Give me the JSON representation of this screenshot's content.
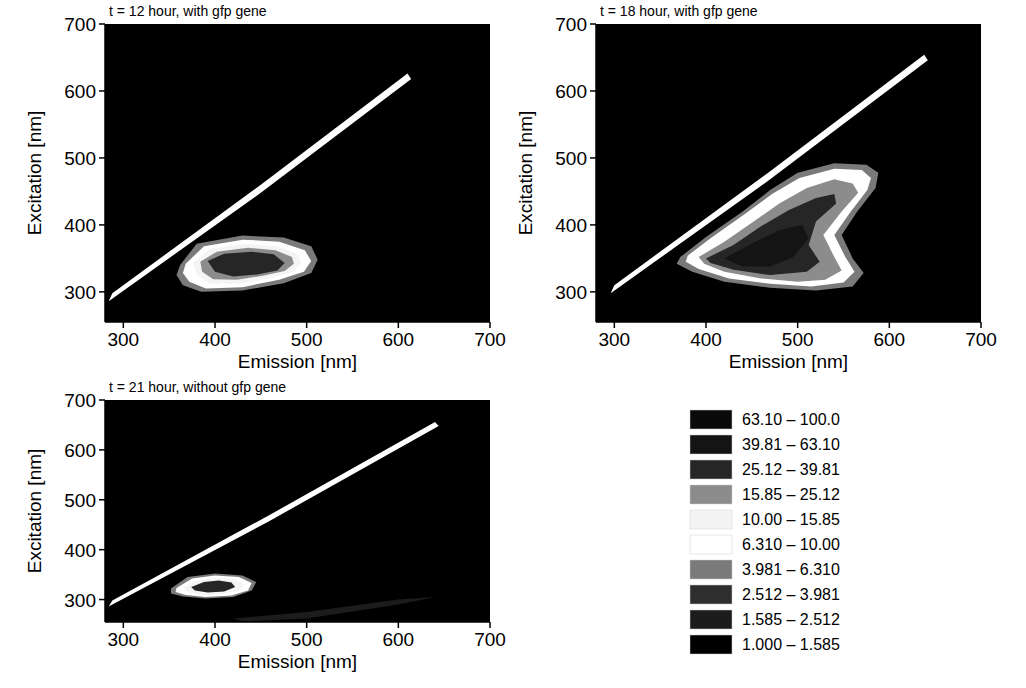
{
  "chart_data": [
    {
      "type": "contour",
      "title": "t = 12 hour, with gfp gene",
      "x_label": "Emission [nm]",
      "y_label": "Excitation [nm]",
      "xlim": [
        280,
        700
      ],
      "ylim": [
        255,
        700
      ],
      "xticks": [
        300,
        400,
        500,
        600,
        700
      ],
      "yticks": [
        300,
        400,
        500,
        600,
        700
      ],
      "background_level": 1,
      "contours": [
        {
          "level": 3.981,
          "x": [
            362,
            380,
            430,
            475,
            505,
            512,
            505,
            475,
            430,
            385,
            365,
            358
          ],
          "y": [
            340,
            372,
            384,
            381,
            368,
            348,
            328,
            313,
            302,
            300,
            310,
            325
          ]
        },
        {
          "level": 6.31,
          "x": [
            284,
            450,
            614,
            610,
            450,
            288
          ],
          "y": [
            286,
            448,
            618,
            626,
            460,
            298
          ]
        },
        {
          "level": 6.31,
          "x": [
            368,
            388,
            430,
            470,
            498,
            505,
            497,
            470,
            430,
            390,
            372,
            365
          ],
          "y": [
            342,
            368,
            378,
            375,
            362,
            346,
            330,
            318,
            307,
            305,
            315,
            328
          ]
        },
        {
          "level": 10,
          "x": [
            376,
            395,
            432,
            468,
            490,
            494,
            486,
            462,
            428,
            395,
            380
          ],
          "y": [
            344,
            364,
            372,
            368,
            356,
            344,
            330,
            321,
            312,
            312,
            325
          ]
        },
        {
          "level": 15.85,
          "x": [
            384,
            402,
            436,
            466,
            484,
            486,
            476,
            452,
            424,
            398,
            386
          ],
          "y": [
            345,
            360,
            366,
            362,
            352,
            342,
            331,
            324,
            318,
            319,
            330
          ]
        },
        {
          "level": 25.12,
          "x": [
            392,
            410,
            440,
            464,
            476,
            468,
            446,
            420,
            400
          ],
          "y": [
            346,
            357,
            360,
            356,
            343,
            332,
            326,
            323,
            330
          ]
        }
      ]
    },
    {
      "type": "contour",
      "title": "t = 18 hour, with gfp gene",
      "x_label": "Emission [nm]",
      "y_label": "Excitation [nm]",
      "xlim": [
        280,
        700
      ],
      "ylim": [
        255,
        700
      ],
      "xticks": [
        300,
        400,
        500,
        600,
        700
      ],
      "yticks": [
        300,
        400,
        500,
        600,
        700
      ],
      "background_level": 1,
      "contours": [
        {
          "level": 3.981,
          "x": [
            372,
            400,
            440,
            470,
            500,
            540,
            575,
            588,
            585,
            565,
            548,
            560,
            572,
            560,
            520,
            470,
            420,
            385,
            368
          ],
          "y": [
            352,
            382,
            420,
            452,
            478,
            492,
            490,
            478,
            455,
            420,
            385,
            350,
            328,
            308,
            302,
            306,
            315,
            330,
            342
          ]
        },
        {
          "level": 6.31,
          "x": [
            296,
            470,
            642,
            638,
            470,
            300
          ],
          "y": [
            298,
            468,
            646,
            654,
            480,
            310
          ]
        },
        {
          "level": 6.31,
          "x": [
            380,
            405,
            442,
            472,
            502,
            540,
            570,
            580,
            576,
            558,
            540,
            552,
            562,
            550,
            515,
            470,
            425,
            392,
            378
          ],
          "y": [
            354,
            380,
            416,
            446,
            470,
            484,
            482,
            470,
            452,
            420,
            385,
            352,
            330,
            314,
            308,
            312,
            320,
            334,
            345
          ]
        },
        {
          "level": 15.85,
          "x": [
            392,
            420,
            452,
            480,
            510,
            540,
            560,
            566,
            548,
            528,
            540,
            548,
            530,
            500,
            460,
            420,
            398
          ],
          "y": [
            352,
            375,
            405,
            432,
            455,
            468,
            462,
            448,
            420,
            385,
            352,
            332,
            318,
            315,
            320,
            330,
            342
          ]
        },
        {
          "level": 25.12,
          "x": [
            400,
            430,
            460,
            490,
            520,
            540,
            542,
            520,
            512,
            524,
            510,
            470,
            430,
            405
          ],
          "y": [
            350,
            370,
            398,
            422,
            440,
            446,
            432,
            405,
            370,
            345,
            330,
            325,
            333,
            343
          ]
        },
        {
          "level": 39.81,
          "x": [
            420,
            450,
            480,
            505,
            512,
            495,
            470,
            440
          ],
          "y": [
            350,
            372,
            392,
            400,
            380,
            352,
            338,
            338
          ]
        }
      ]
    },
    {
      "type": "contour",
      "title": "t = 21 hour, without gfp gene",
      "x_label": "Emission [nm]",
      "y_label": "Excitation [nm]",
      "xlim": [
        280,
        700
      ],
      "ylim": [
        255,
        700
      ],
      "xticks": [
        300,
        400,
        500,
        600,
        700
      ],
      "yticks": [
        300,
        400,
        500,
        600,
        700
      ],
      "background_level": 1,
      "contours": [
        {
          "level": 1.585,
          "x": [
            420,
            500,
            600,
            640,
            600,
            500,
            430
          ],
          "y": [
            262,
            275,
            300,
            305,
            290,
            262,
            256
          ]
        },
        {
          "level": 3.981,
          "x": [
            352,
            370,
            400,
            430,
            445,
            440,
            420,
            390,
            365,
            352
          ],
          "y": [
            322,
            345,
            352,
            348,
            335,
            318,
            305,
            302,
            306,
            312
          ]
        },
        {
          "level": 6.31,
          "x": [
            284,
            460,
            644,
            640,
            460,
            288
          ],
          "y": [
            286,
            458,
            648,
            656,
            470,
            298
          ]
        },
        {
          "level": 6.31,
          "x": [
            358,
            375,
            400,
            426,
            440,
            436,
            418,
            390,
            368,
            357
          ],
          "y": [
            323,
            342,
            348,
            345,
            333,
            318,
            308,
            305,
            309,
            315
          ]
        },
        {
          "level": 10,
          "x": [
            366,
            380,
            402,
            422,
            432,
            426,
            410,
            388,
            370
          ],
          "y": [
            324,
            338,
            343,
            340,
            330,
            318,
            311,
            309,
            315
          ]
        },
        {
          "level": 25.12,
          "x": [
            374,
            388,
            404,
            418,
            422,
            410,
            392,
            378
          ],
          "y": [
            325,
            335,
            338,
            334,
            325,
            316,
            314,
            318
          ]
        }
      ]
    }
  ],
  "colorbar": {
    "bands": [
      {
        "min": 63.1,
        "max": 100,
        "label": "63.10 – 100.0",
        "color": "#0a0a0a"
      },
      {
        "min": 39.81,
        "max": 63.1,
        "label": "39.81 – 63.10",
        "color": "#141414"
      },
      {
        "min": 25.12,
        "max": 39.81,
        "label": "25.12 – 39.81",
        "color": "#262626"
      },
      {
        "min": 15.85,
        "max": 25.12,
        "label": "15.85 – 25.12",
        "color": "#8c8c8c"
      },
      {
        "min": 10,
        "max": 15.85,
        "label": "10.00 – 15.85",
        "color": "#f4f4f4"
      },
      {
        "min": 6.31,
        "max": 10,
        "label": "6.310 – 10.00",
        "color": "#ffffff"
      },
      {
        "min": 3.981,
        "max": 6.31,
        "label": "3.981 – 6.310",
        "color": "#7a7a7a"
      },
      {
        "min": 2.512,
        "max": 3.981,
        "label": "2.512 – 3.981",
        "color": "#2e2e2e"
      },
      {
        "min": 1.585,
        "max": 2.512,
        "label": "1.585 – 2.512",
        "color": "#1c1c1c"
      },
      {
        "min": 1,
        "max": 1.585,
        "label": "1.000 – 1.585",
        "color": "#000000"
      }
    ]
  }
}
